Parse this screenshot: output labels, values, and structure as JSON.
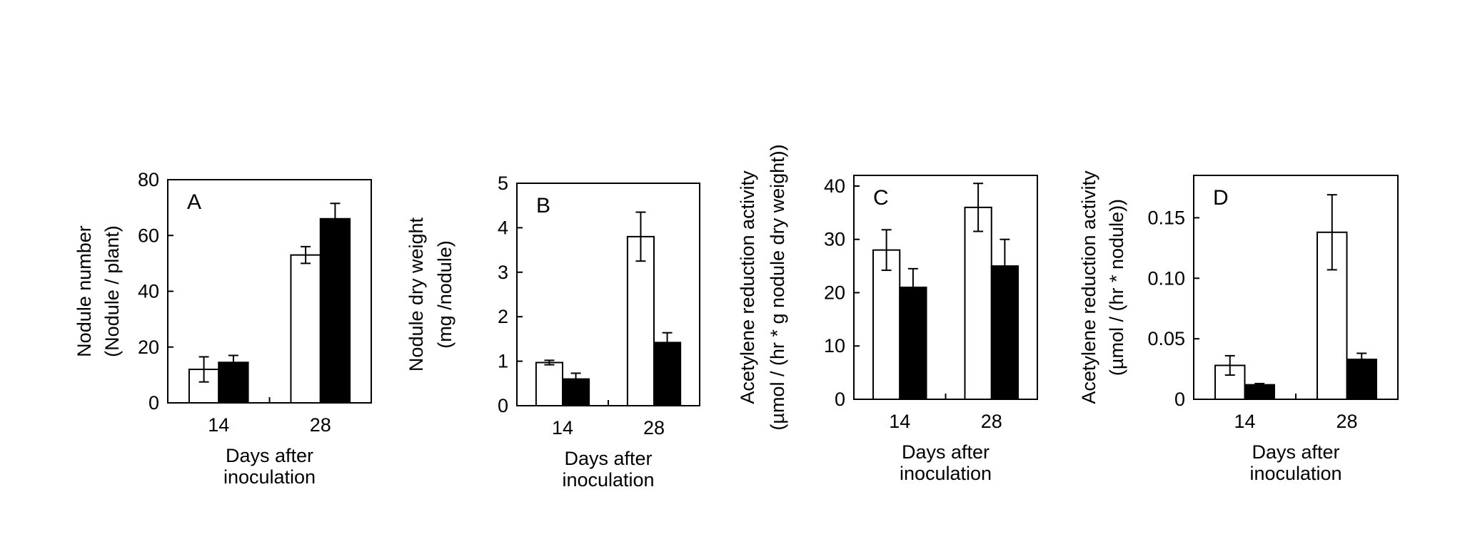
{
  "figure": {
    "x_title_lines": [
      "Days after",
      "inoculation"
    ],
    "colors": {
      "open_bar": "#ffffff",
      "filled_bar": "#000000",
      "outline": "#000000"
    }
  },
  "chart_data": [
    {
      "type": "bar",
      "panel": "A",
      "categories": [
        "14",
        "28"
      ],
      "series": [
        {
          "fill": "open",
          "values": [
            12,
            53
          ],
          "errors": [
            4.5,
            3
          ]
        },
        {
          "fill": "filled",
          "values": [
            14.5,
            66
          ],
          "errors": [
            2.5,
            5.5
          ]
        }
      ],
      "ylabel_lines": [
        "Nodule number",
        "(Nodule / plant)"
      ],
      "ylim": [
        0,
        80
      ],
      "yticks": [
        0,
        20,
        40,
        60,
        80
      ],
      "ytick_labels": [
        "0",
        "20",
        "40",
        "60",
        "80"
      ],
      "xlabel_lines": [
        "Days after",
        "inoculation"
      ]
    },
    {
      "type": "bar",
      "panel": "B",
      "categories": [
        "14",
        "28"
      ],
      "series": [
        {
          "fill": "open",
          "values": [
            0.97,
            3.8
          ],
          "errors": [
            0.05,
            0.55
          ]
        },
        {
          "fill": "filled",
          "values": [
            0.6,
            1.42
          ],
          "errors": [
            0.13,
            0.22
          ]
        }
      ],
      "ylabel_lines": [
        "Nodule dry weight",
        "(mg /nodule)"
      ],
      "ylim": [
        0,
        5
      ],
      "yticks": [
        0,
        1,
        2,
        3,
        4,
        5
      ],
      "ytick_labels": [
        "0",
        "1",
        "2",
        "3",
        "4",
        "5"
      ],
      "xlabel_lines": [
        "Days after",
        "inoculation"
      ]
    },
    {
      "type": "bar",
      "panel": "C",
      "categories": [
        "14",
        "28"
      ],
      "series": [
        {
          "fill": "open",
          "values": [
            28,
            36
          ],
          "errors": [
            3.8,
            4.5
          ]
        },
        {
          "fill": "filled",
          "values": [
            21,
            25
          ],
          "errors": [
            3.5,
            5
          ]
        }
      ],
      "ylabel_lines": [
        "Acetylene reduction activity",
        "(µmol / (hr * g nodule dry weight))"
      ],
      "ylim": [
        0,
        42
      ],
      "yticks": [
        0,
        10,
        20,
        30,
        40
      ],
      "ytick_labels": [
        "0",
        "10",
        "20",
        "30",
        "40"
      ],
      "xlabel_lines": [
        "Days after",
        "inoculation"
      ]
    },
    {
      "type": "bar",
      "panel": "D",
      "categories": [
        "14",
        "28"
      ],
      "series": [
        {
          "fill": "open",
          "values": [
            0.028,
            0.138
          ],
          "errors": [
            0.008,
            0.031
          ]
        },
        {
          "fill": "filled",
          "values": [
            0.012,
            0.033
          ],
          "errors": [
            0.001,
            0.005
          ]
        }
      ],
      "ylabel_lines": [
        "Acetylene reduction activity",
        "(µmol / (hr * nodule))"
      ],
      "ylim": [
        0,
        0.185
      ],
      "yticks": [
        0,
        0.05,
        0.1,
        0.15
      ],
      "ytick_labels": [
        "0",
        "0.05",
        "0.10",
        "0.15"
      ],
      "xlabel_lines": [
        "Days after",
        "inoculation"
      ]
    }
  ]
}
